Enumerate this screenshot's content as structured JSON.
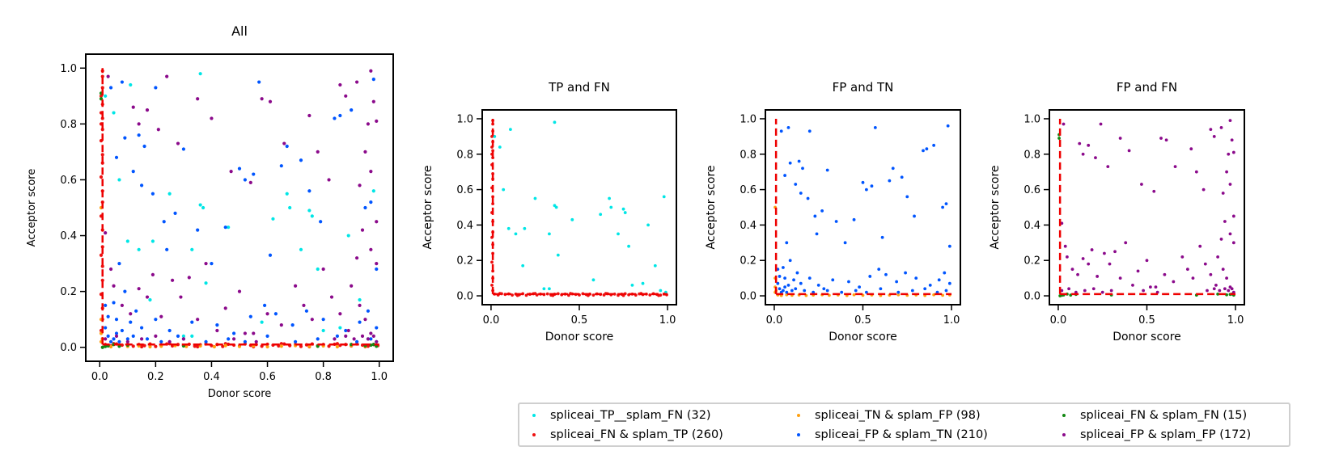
{
  "colors": {
    "spliceai_TP__splam_FN": "#00e6e6",
    "spliceai_FN & splam_TP": "#ee1111",
    "spliceai_TN & splam_FP": "#ffa010",
    "spliceai_FP & splam_TN": "#0055ff",
    "spliceai_FN & splam_FN": "#118811",
    "spliceai_FP & splam_FP": "#8b0a8b",
    "threshold": "#ee0000"
  },
  "legend": {
    "items": [
      {
        "key": "spliceai_TP__splam_FN",
        "label": "spliceai_TP__splam_FN (32)"
      },
      {
        "key": "spliceai_FN & splam_TP",
        "label": "spliceai_FN & splam_TP (260)"
      },
      {
        "key": "spliceai_TN & splam_FP",
        "label": "spliceai_TN & splam_FP (98)"
      },
      {
        "key": "spliceai_FP & splam_TN",
        "label": "spliceai_FP & splam_TN (210)"
      },
      {
        "key": "spliceai_FN & splam_FN",
        "label": "spliceai_FN & splam_FN (15)"
      },
      {
        "key": "spliceai_FP & splam_FP",
        "label": "spliceai_FP & splam_FP (172)"
      }
    ],
    "placement": "below, bottom-right"
  },
  "chart_data": [
    {
      "type": "scatter",
      "title": "All",
      "xlabel": "Donor score",
      "ylabel": "Acceptor score",
      "xlim": [
        -0.05,
        1.05
      ],
      "ylim": [
        -0.05,
        1.05
      ],
      "xticks": [
        "0.0",
        "0.2",
        "0.4",
        "0.6",
        "0.8",
        "1.0"
      ],
      "yticks": [
        "0.0",
        "0.2",
        "0.4",
        "0.6",
        "0.8",
        "1.0"
      ],
      "threshold": 0.01,
      "series_keys": [
        "spliceai_TP__splam_FN",
        "spliceai_FN & splam_TP",
        "spliceai_TN & splam_FP",
        "spliceai_FP & splam_TN",
        "spliceai_FN & splam_FN",
        "spliceai_FP & splam_FP"
      ]
    },
    {
      "type": "scatter",
      "title": "TP and FN",
      "xlabel": "Donor score",
      "ylabel": "Acceptor score",
      "xlim": [
        -0.05,
        1.05
      ],
      "ylim": [
        -0.05,
        1.05
      ],
      "xticks": [
        "0.0",
        "0.5",
        "1.0"
      ],
      "yticks": [
        "0.0",
        "0.2",
        "0.4",
        "0.6",
        "0.8",
        "1.0"
      ],
      "threshold": 0.01,
      "series_keys": [
        "spliceai_TP__splam_FN",
        "spliceai_FN & splam_TP"
      ]
    },
    {
      "type": "scatter",
      "title": "FP and TN",
      "xlabel": "Donor score",
      "ylabel": "Acceptor score",
      "xlim": [
        -0.05,
        1.05
      ],
      "ylim": [
        -0.05,
        1.05
      ],
      "xticks": [
        "0.0",
        "0.5",
        "1.0"
      ],
      "yticks": [
        "0.0",
        "0.2",
        "0.4",
        "0.6",
        "0.8",
        "1.0"
      ],
      "threshold": 0.01,
      "series_keys": [
        "spliceai_TN & splam_FP",
        "spliceai_FP & splam_TN"
      ]
    },
    {
      "type": "scatter",
      "title": "FP and FN",
      "xlabel": "Donor score",
      "ylabel": "Acceptor score",
      "xlim": [
        -0.05,
        1.05
      ],
      "ylim": [
        -0.05,
        1.05
      ],
      "xticks": [
        "0.0",
        "0.5",
        "1.0"
      ],
      "yticks": [
        "0.0",
        "0.2",
        "0.4",
        "0.6",
        "0.8",
        "1.0"
      ],
      "threshold": 0.01,
      "series_keys": [
        "spliceai_FN & splam_FN",
        "spliceai_FP & splam_FP"
      ]
    }
  ],
  "series": {
    "spliceai_TP__splam_FN": [
      [
        0.02,
        0.9
      ],
      [
        0.05,
        0.84
      ],
      [
        0.07,
        0.6
      ],
      [
        0.11,
        0.94
      ],
      [
        0.1,
        0.38
      ],
      [
        0.14,
        0.35
      ],
      [
        0.18,
        0.17
      ],
      [
        0.19,
        0.38
      ],
      [
        0.25,
        0.55
      ],
      [
        0.3,
        0.04
      ],
      [
        0.33,
        0.04
      ],
      [
        0.36,
        0.98
      ],
      [
        0.36,
        0.51
      ],
      [
        0.33,
        0.35
      ],
      [
        0.38,
        0.23
      ],
      [
        0.37,
        0.5
      ],
      [
        0.46,
        0.43
      ],
      [
        0.58,
        0.09
      ],
      [
        0.62,
        0.46
      ],
      [
        0.67,
        0.55
      ],
      [
        0.68,
        0.5
      ],
      [
        0.72,
        0.35
      ],
      [
        0.75,
        0.49
      ],
      [
        0.76,
        0.47
      ],
      [
        0.78,
        0.28
      ],
      [
        0.8,
        0.06
      ],
      [
        0.86,
        0.07
      ],
      [
        0.89,
        0.4
      ],
      [
        0.93,
        0.17
      ],
      [
        0.96,
        0.03
      ],
      [
        0.98,
        0.56
      ],
      [
        0.99,
        0.02
      ]
    ],
    "spliceai_FN & splam_TP": [
      [
        0.01,
        0.99
      ],
      [
        0.01,
        0.97
      ],
      [
        0.01,
        0.93
      ],
      [
        0.005,
        0.9
      ],
      [
        0.01,
        0.87
      ],
      [
        0.005,
        0.84
      ],
      [
        0.01,
        0.82
      ],
      [
        0.005,
        0.8
      ],
      [
        0.01,
        0.78
      ],
      [
        0.005,
        0.74
      ],
      [
        0.01,
        0.69
      ],
      [
        0.01,
        0.66
      ],
      [
        0.005,
        0.61
      ],
      [
        0.01,
        0.56
      ],
      [
        0.01,
        0.52
      ],
      [
        0.005,
        0.47
      ],
      [
        0.01,
        0.42
      ],
      [
        0.01,
        0.36
      ],
      [
        0.005,
        0.33
      ],
      [
        0.01,
        0.29
      ],
      [
        0.01,
        0.24
      ],
      [
        0.005,
        0.19
      ],
      [
        0.01,
        0.14
      ],
      [
        0.01,
        0.1
      ],
      [
        0.005,
        0.06
      ],
      [
        0.01,
        0.03
      ],
      [
        0.02,
        0.01
      ],
      [
        0.04,
        0.005
      ],
      [
        0.06,
        0.012
      ],
      [
        0.08,
        0.008
      ],
      [
        0.1,
        0.011
      ],
      [
        0.12,
        0.004
      ],
      [
        0.14,
        0.01
      ],
      [
        0.16,
        0.006
      ],
      [
        0.18,
        0.012
      ],
      [
        0.2,
        0.003
      ],
      [
        0.22,
        0.009
      ],
      [
        0.24,
        0.012
      ],
      [
        0.26,
        0.005
      ],
      [
        0.28,
        0.01
      ],
      [
        0.3,
        0.007
      ],
      [
        0.32,
        0.011
      ],
      [
        0.34,
        0.004
      ],
      [
        0.36,
        0.009
      ],
      [
        0.38,
        0.012
      ],
      [
        0.4,
        0.006
      ],
      [
        0.42,
        0.01
      ],
      [
        0.44,
        0.003
      ],
      [
        0.46,
        0.011
      ],
      [
        0.48,
        0.008
      ],
      [
        0.5,
        0.005
      ],
      [
        0.52,
        0.012
      ],
      [
        0.54,
        0.007
      ],
      [
        0.56,
        0.01
      ],
      [
        0.58,
        0.004
      ],
      [
        0.6,
        0.011
      ],
      [
        0.62,
        0.008
      ],
      [
        0.64,
        0.005
      ],
      [
        0.66,
        0.012
      ],
      [
        0.68,
        0.006
      ],
      [
        0.7,
        0.01
      ],
      [
        0.72,
        0.003
      ],
      [
        0.74,
        0.009
      ],
      [
        0.76,
        0.012
      ],
      [
        0.78,
        0.006
      ],
      [
        0.8,
        0.01
      ],
      [
        0.82,
        0.004
      ],
      [
        0.84,
        0.011
      ],
      [
        0.86,
        0.007
      ],
      [
        0.88,
        0.01
      ],
      [
        0.9,
        0.005
      ],
      [
        0.92,
        0.012
      ],
      [
        0.94,
        0.008
      ],
      [
        0.96,
        0.004
      ],
      [
        0.98,
        0.01
      ],
      [
        0.995,
        0.006
      ],
      [
        0.05,
        0.013
      ],
      [
        0.15,
        0.002
      ],
      [
        0.25,
        0.013
      ],
      [
        0.35,
        0.002
      ],
      [
        0.45,
        0.013
      ],
      [
        0.55,
        0.002
      ],
      [
        0.65,
        0.013
      ],
      [
        0.75,
        0.002
      ],
      [
        0.85,
        0.013
      ],
      [
        0.95,
        0.002
      ]
    ],
    "spliceai_TN & splam_FP": [
      [
        0.005,
        0.5
      ],
      [
        0.005,
        0.1
      ],
      [
        0.005,
        0.05
      ],
      [
        0.01,
        0.03
      ],
      [
        0.005,
        0.02
      ],
      [
        0.02,
        0.005
      ],
      [
        0.04,
        0.002
      ],
      [
        0.07,
        0.006
      ],
      [
        0.1,
        0.003
      ],
      [
        0.14,
        0.005
      ],
      [
        0.18,
        0.002
      ],
      [
        0.22,
        0.004
      ],
      [
        0.27,
        0.006
      ],
      [
        0.31,
        0.003
      ],
      [
        0.36,
        0.005
      ],
      [
        0.41,
        0.002
      ],
      [
        0.45,
        0.006
      ],
      [
        0.5,
        0.003
      ],
      [
        0.55,
        0.005
      ],
      [
        0.6,
        0.002
      ],
      [
        0.65,
        0.004
      ],
      [
        0.7,
        0.006
      ],
      [
        0.75,
        0.003
      ],
      [
        0.8,
        0.005
      ],
      [
        0.85,
        0.002
      ],
      [
        0.9,
        0.006
      ],
      [
        0.95,
        0.003
      ],
      [
        0.99,
        0.005
      ]
    ],
    "spliceai_FP & splam_TN": [
      [
        0.04,
        0.93
      ],
      [
        0.06,
        0.68
      ],
      [
        0.08,
        0.95
      ],
      [
        0.09,
        0.75
      ],
      [
        0.12,
        0.63
      ],
      [
        0.14,
        0.76
      ],
      [
        0.15,
        0.58
      ],
      [
        0.16,
        0.72
      ],
      [
        0.19,
        0.55
      ],
      [
        0.2,
        0.93
      ],
      [
        0.23,
        0.45
      ],
      [
        0.24,
        0.35
      ],
      [
        0.27,
        0.48
      ],
      [
        0.3,
        0.71
      ],
      [
        0.35,
        0.42
      ],
      [
        0.4,
        0.3
      ],
      [
        0.45,
        0.43
      ],
      [
        0.5,
        0.64
      ],
      [
        0.52,
        0.6
      ],
      [
        0.55,
        0.62
      ],
      [
        0.57,
        0.95
      ],
      [
        0.61,
        0.33
      ],
      [
        0.65,
        0.65
      ],
      [
        0.67,
        0.72
      ],
      [
        0.72,
        0.67
      ],
      [
        0.75,
        0.56
      ],
      [
        0.79,
        0.45
      ],
      [
        0.84,
        0.82
      ],
      [
        0.86,
        0.83
      ],
      [
        0.9,
        0.85
      ],
      [
        0.95,
        0.5
      ],
      [
        0.98,
        0.96
      ],
      [
        0.97,
        0.52
      ],
      [
        0.99,
        0.28
      ],
      [
        0.07,
        0.3
      ],
      [
        0.09,
        0.2
      ],
      [
        0.05,
        0.16
      ],
      [
        0.06,
        0.1
      ],
      [
        0.08,
        0.06
      ],
      [
        0.11,
        0.09
      ],
      [
        0.13,
        0.13
      ],
      [
        0.15,
        0.07
      ],
      [
        0.2,
        0.1
      ],
      [
        0.25,
        0.06
      ],
      [
        0.28,
        0.04
      ],
      [
        0.33,
        0.09
      ],
      [
        0.42,
        0.08
      ],
      [
        0.48,
        0.05
      ],
      [
        0.54,
        0.11
      ],
      [
        0.59,
        0.15
      ],
      [
        0.63,
        0.12
      ],
      [
        0.69,
        0.08
      ],
      [
        0.74,
        0.13
      ],
      [
        0.8,
        0.1
      ],
      [
        0.88,
        0.06
      ],
      [
        0.93,
        0.09
      ],
      [
        0.96,
        0.13
      ],
      [
        0.99,
        0.07
      ],
      [
        0.03,
        0.04
      ],
      [
        0.05,
        0.03
      ],
      [
        0.04,
        0.02
      ],
      [
        0.06,
        0.05
      ],
      [
        0.07,
        0.02
      ],
      [
        0.1,
        0.03
      ],
      [
        0.12,
        0.04
      ],
      [
        0.17,
        0.03
      ],
      [
        0.22,
        0.02
      ],
      [
        0.3,
        0.03
      ],
      [
        0.38,
        0.02
      ],
      [
        0.46,
        0.03
      ],
      [
        0.52,
        0.02
      ],
      [
        0.6,
        0.04
      ],
      [
        0.7,
        0.02
      ],
      [
        0.78,
        0.03
      ],
      [
        0.85,
        0.04
      ],
      [
        0.92,
        0.02
      ],
      [
        0.97,
        0.03
      ],
      [
        0.02,
        0.07
      ],
      [
        0.03,
        0.11
      ],
      [
        0.02,
        0.15
      ]
    ],
    "spliceai_FN & splam_FN": [
      [
        0.005,
        0.91
      ],
      [
        0.005,
        0.89
      ],
      [
        0.01,
        0.0
      ],
      [
        0.03,
        0.005
      ],
      [
        0.05,
        0.01
      ],
      [
        0.07,
        0.004
      ],
      [
        0.1,
        0.008
      ],
      [
        0.3,
        0.005
      ],
      [
        0.78,
        0.004
      ],
      [
        0.9,
        0.01
      ],
      [
        0.95,
        0.006
      ],
      [
        0.98,
        0.01
      ],
      [
        0.99,
        0.004
      ],
      [
        0.97,
        0.008
      ],
      [
        0.02,
        0.003
      ]
    ],
    "spliceai_FP & splam_FP": [
      [
        0.03,
        0.97
      ],
      [
        0.12,
        0.86
      ],
      [
        0.14,
        0.8
      ],
      [
        0.17,
        0.85
      ],
      [
        0.21,
        0.78
      ],
      [
        0.24,
        0.97
      ],
      [
        0.28,
        0.73
      ],
      [
        0.35,
        0.89
      ],
      [
        0.4,
        0.82
      ],
      [
        0.47,
        0.63
      ],
      [
        0.54,
        0.59
      ],
      [
        0.58,
        0.89
      ],
      [
        0.61,
        0.88
      ],
      [
        0.66,
        0.73
      ],
      [
        0.75,
        0.83
      ],
      [
        0.78,
        0.7
      ],
      [
        0.82,
        0.6
      ],
      [
        0.86,
        0.94
      ],
      [
        0.88,
        0.9
      ],
      [
        0.92,
        0.95
      ],
      [
        0.97,
        0.99
      ],
      [
        0.98,
        0.88
      ],
      [
        0.96,
        0.8
      ],
      [
        0.99,
        0.81
      ],
      [
        0.95,
        0.7
      ],
      [
        0.97,
        0.63
      ],
      [
        0.93,
        0.58
      ],
      [
        0.99,
        0.45
      ],
      [
        0.94,
        0.42
      ],
      [
        0.97,
        0.35
      ],
      [
        0.99,
        0.3
      ],
      [
        0.92,
        0.32
      ],
      [
        0.02,
        0.41
      ],
      [
        0.04,
        0.28
      ],
      [
        0.05,
        0.22
      ],
      [
        0.08,
        0.15
      ],
      [
        0.11,
        0.12
      ],
      [
        0.14,
        0.21
      ],
      [
        0.17,
        0.18
      ],
      [
        0.19,
        0.26
      ],
      [
        0.22,
        0.11
      ],
      [
        0.26,
        0.24
      ],
      [
        0.29,
        0.18
      ],
      [
        0.32,
        0.25
      ],
      [
        0.35,
        0.1
      ],
      [
        0.38,
        0.3
      ],
      [
        0.42,
        0.06
      ],
      [
        0.45,
        0.14
      ],
      [
        0.5,
        0.2
      ],
      [
        0.55,
        0.05
      ],
      [
        0.6,
        0.12
      ],
      [
        0.65,
        0.08
      ],
      [
        0.7,
        0.22
      ],
      [
        0.73,
        0.15
      ],
      [
        0.76,
        0.1
      ],
      [
        0.8,
        0.28
      ],
      [
        0.83,
        0.18
      ],
      [
        0.86,
        0.12
      ],
      [
        0.89,
        0.06
      ],
      [
        0.9,
        0.22
      ],
      [
        0.93,
        0.15
      ],
      [
        0.95,
        0.1
      ],
      [
        0.97,
        0.05
      ],
      [
        0.99,
        0.02
      ],
      [
        0.02,
        0.03
      ],
      [
        0.06,
        0.04
      ],
      [
        0.1,
        0.02
      ],
      [
        0.15,
        0.03
      ],
      [
        0.2,
        0.04
      ],
      [
        0.25,
        0.02
      ],
      [
        0.3,
        0.03
      ],
      [
        0.48,
        0.03
      ],
      [
        0.52,
        0.05
      ],
      [
        0.56,
        0.02
      ],
      [
        0.84,
        0.03
      ],
      [
        0.88,
        0.04
      ],
      [
        0.91,
        0.03
      ],
      [
        0.94,
        0.04
      ],
      [
        0.96,
        0.03
      ],
      [
        0.98,
        0.04
      ]
    ]
  }
}
